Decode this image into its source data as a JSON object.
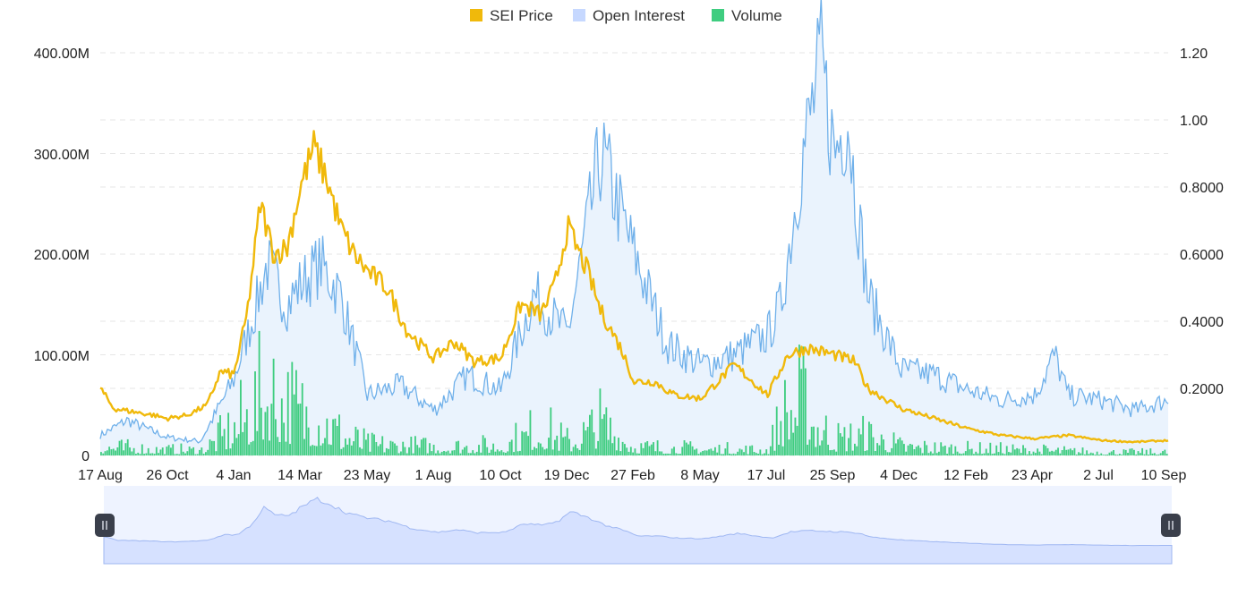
{
  "chart_data": {
    "type": "line",
    "title": "",
    "legend": {
      "placement": "top-center",
      "items": [
        {
          "name": "SEI Price",
          "color": "#f0b90b"
        },
        {
          "name": "Open Interest",
          "color": "#c6d8ff"
        },
        {
          "name": "Volume",
          "color": "#3fcd80"
        }
      ]
    },
    "x_tick_labels": [
      "17 Aug",
      "26 Oct",
      "4 Jan",
      "14 Mar",
      "23 May",
      "1 Aug",
      "10 Oct",
      "19 Dec",
      "27 Feb",
      "8 May",
      "17 Jul",
      "25 Sep",
      "4 Dec",
      "12 Feb",
      "23 Apr",
      "2 Jul",
      "10 Sep"
    ],
    "y_left": {
      "label": "",
      "range": [
        0,
        400000000
      ],
      "tick_labels": [
        "0",
        "100.00M",
        "200.00M",
        "300.00M",
        "400.00M"
      ]
    },
    "y_right": {
      "label": "",
      "range": [
        0,
        1.2
      ],
      "tick_labels": [
        "0.2000",
        "0.4000",
        "0.6000",
        "0.8000",
        "1.00",
        "1.20"
      ]
    },
    "grid": true,
    "series": [
      {
        "name": "Open Interest",
        "axis": "left",
        "x": [
          0,
          0.4,
          1,
          1.5,
          2,
          2.3,
          2.5,
          2.8,
          3,
          3.3,
          3.6,
          4,
          4.5,
          5,
          5.5,
          6,
          6.5,
          7,
          7.5,
          8,
          8.5,
          9,
          9.5,
          10,
          10.2,
          10.5,
          10.8,
          11,
          11.2,
          11.3,
          11.5,
          12,
          12.5,
          13,
          13.5,
          14,
          14.3,
          14.5,
          15,
          15.5,
          16
        ],
        "values": [
          20000000,
          35000000,
          18000000,
          14000000,
          75000000,
          140000000,
          190000000,
          150000000,
          170000000,
          190000000,
          160000000,
          60000000,
          70000000,
          45000000,
          80000000,
          65000000,
          160000000,
          120000000,
          300000000,
          200000000,
          110000000,
          90000000,
          100000000,
          120000000,
          150000000,
          290000000,
          390000000,
          300000000,
          340000000,
          270000000,
          160000000,
          85000000,
          80000000,
          65000000,
          55000000,
          60000000,
          100000000,
          60000000,
          55000000,
          45000000,
          55000000
        ]
      },
      {
        "name": "SEI Price",
        "axis": "right",
        "x": [
          0,
          0.2,
          0.5,
          0.8,
          1,
          1.3,
          1.6,
          1.8,
          2,
          2.2,
          2.4,
          2.6,
          2.8,
          3,
          3.2,
          3.4,
          3.6,
          3.8,
          4,
          4.3,
          4.6,
          5,
          5.3,
          5.6,
          6,
          6.3,
          6.6,
          6.8,
          7,
          7.3,
          7.5,
          7.8,
          8,
          8.3,
          8.6,
          9,
          9.5,
          10,
          10.3,
          10.6,
          11,
          11.3,
          11.5,
          12,
          12.5,
          13,
          13.5,
          14,
          14.5,
          15,
          15.5,
          16
        ],
        "values": [
          0.2,
          0.14,
          0.13,
          0.12,
          0.11,
          0.12,
          0.15,
          0.25,
          0.24,
          0.42,
          0.75,
          0.6,
          0.62,
          0.8,
          0.92,
          0.82,
          0.68,
          0.6,
          0.55,
          0.5,
          0.37,
          0.29,
          0.34,
          0.28,
          0.29,
          0.45,
          0.42,
          0.5,
          0.68,
          0.55,
          0.43,
          0.32,
          0.22,
          0.22,
          0.18,
          0.17,
          0.27,
          0.18,
          0.3,
          0.32,
          0.3,
          0.28,
          0.2,
          0.14,
          0.11,
          0.08,
          0.06,
          0.05,
          0.06,
          0.045,
          0.04,
          0.045
        ]
      },
      {
        "name": "Volume",
        "axis": "left",
        "x": [
          0,
          1,
          1.5,
          2,
          2.5,
          2.7,
          3,
          3.3,
          3.6,
          4,
          5,
          6,
          6.6,
          7,
          7.5,
          8,
          9,
          10,
          10.2,
          10.5,
          10.7,
          11,
          11.5,
          12,
          13,
          14,
          15,
          16
        ],
        "values": [
          8000000,
          5000000,
          5000000,
          25000000,
          60000000,
          50000000,
          40000000,
          35000000,
          20000000,
          10000000,
          8000000,
          9000000,
          25000000,
          12000000,
          30000000,
          8000000,
          6000000,
          5000000,
          35000000,
          50000000,
          30000000,
          15000000,
          18000000,
          8000000,
          6000000,
          5000000,
          3000000,
          3000000
        ]
      }
    ],
    "navigator": {
      "start_fraction": 0,
      "end_fraction": 1
    }
  }
}
